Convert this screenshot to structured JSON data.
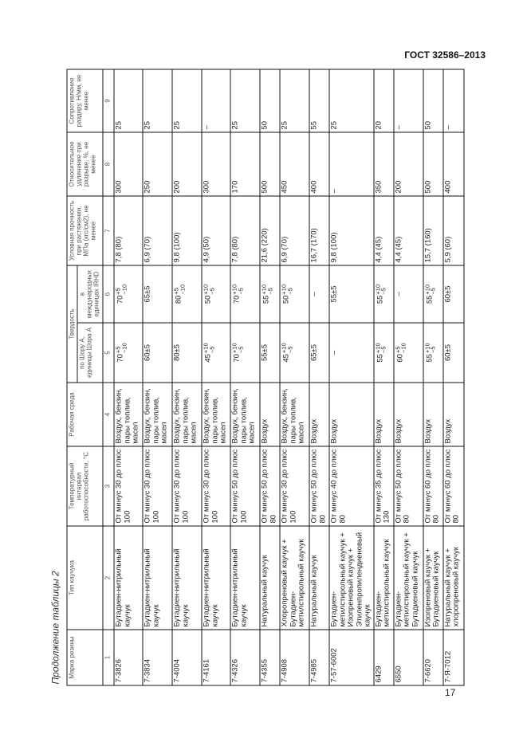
{
  "header": {
    "standard": "ГОСТ 32586–2013"
  },
  "page_number": "17",
  "caption": "Продолжение таблицы 2",
  "table": {
    "columns": {
      "mark": "Марка резины",
      "type": "Тип каучука",
      "temp": "Температурный интервал работоспособности, °С",
      "medium": "Рабочая среда",
      "hardness": "Твердость",
      "shore": "по Шору А, единицы Шора А",
      "irhd": "в международных единицах IRHD",
      "strength": "Условная прочность при растяжении, МПа (кгс/см2), не менее",
      "elong": "Относительное удлинение при разрыве, %, не менее",
      "tear": "Сопротивление раздиру, Н/мм, не менее"
    },
    "numbers": [
      "1",
      "2",
      "3",
      "4",
      "5",
      "6",
      "7",
      "8",
      "9"
    ],
    "rows": [
      {
        "mark": "7-3826",
        "type": "Бутадиен-нитрильный каучук",
        "temp": "От минус 30 до плюс 100",
        "medium": "Воздух, бензин, пары топлив, масел",
        "shore": {
          "v": "70",
          "up": "+5",
          "dn": "−10"
        },
        "irhd": {
          "v": "70",
          "up": "+5",
          "dn": "−10"
        },
        "strength": "7,8 (80)",
        "elong": "300",
        "tear": "25"
      },
      {
        "mark": "7-3834",
        "type": "Бутадиен-нитрильный каучук",
        "temp": "От минус 30 до плюс 100",
        "medium": "Воздух, бензин, пары топлив, масел",
        "shore": "60±5",
        "irhd": "65±5",
        "strength": "6,9 (70)",
        "elong": "250",
        "tear": "25"
      },
      {
        "mark": "7-4004",
        "type": "Бутадиен-нитрильный каучук",
        "temp": "От минус 30 до плюс 100",
        "medium": "Воздух, бензин, пары топлив, масел",
        "shore": "80±5",
        "irhd": {
          "v": "80",
          "up": "+5",
          "dn": "−10"
        },
        "strength": "9,8 (100)",
        "elong": "200",
        "tear": "25"
      },
      {
        "mark": "7-4161",
        "type": "Бутадиен-нитрильный каучук",
        "temp": "От минус 30 до плюс 100",
        "medium": "Воздух, бензин, пары топлив, масел",
        "shore": {
          "v": "45",
          "up": "+10",
          "dn": "−5"
        },
        "irhd": {
          "v": "50",
          "up": "+10",
          "dn": "−5"
        },
        "strength": "4,9 (50)",
        "elong": "300",
        "tear": "–"
      },
      {
        "mark": "7-4326",
        "type": "Бутадиен-нитрильный каучук",
        "temp": "От минус 50 до плюс 100",
        "medium": "Воздух, бензин, пары топлив, масел",
        "shore": {
          "v": "70",
          "up": "+10",
          "dn": "−5"
        },
        "irhd": {
          "v": "70",
          "up": "+10",
          "dn": "−5"
        },
        "strength": "7,8 (80)",
        "elong": "170",
        "tear": "25"
      },
      {
        "mark": "7-4355",
        "type": "Натуральный каучук",
        "temp": "От минус 50 до плюс 80",
        "medium": "Воздух",
        "shore": "55±5",
        "irhd": {
          "v": "55",
          "up": "+10",
          "dn": "−5"
        },
        "strength": "21,6 (220)",
        "elong": "500",
        "tear": "50"
      },
      {
        "mark": "7-4908",
        "type": "Хлоропреновый каучук + Бутадиен-метилстирольный каучук",
        "temp": "От минус 30 до плюс 100",
        "medium": "Воздух, бензин, пары топлив, масел",
        "shore": {
          "v": "45",
          "up": "+10",
          "dn": "−5"
        },
        "irhd": {
          "v": "50",
          "up": "+10",
          "dn": "−5"
        },
        "strength": "6,9 (70)",
        "elong": "450",
        "tear": "25"
      },
      {
        "mark": "7-4985",
        "type": "Натуральный каучук",
        "temp": "От минус 50 до плюс 80",
        "medium": "Воздух",
        "shore": "65±5",
        "irhd": "–",
        "strength": "16,7 (170)",
        "elong": "400",
        "tear": "55"
      },
      {
        "mark": "7-57-6002",
        "type": "Бутадиен-метилстирольный каучук + Изопреновый каучук + Этиленпропилендиеновый каучук",
        "temp": "От минус 40 до плюс 80",
        "medium": "Воздух",
        "shore": "–",
        "irhd": "55±5",
        "strength": "9,8 (100)",
        "elong": "–",
        "tear": "25"
      },
      {
        "mark": "6429",
        "type": "Бутадиен-метилстирольный каучук",
        "temp": "От минус 35 до плюс 130",
        "medium": "Воздух",
        "shore": {
          "v": "55",
          "up": "+10",
          "dn": "−5"
        },
        "irhd": {
          "v": "55",
          "up": "+10",
          "dn": "−5"
        },
        "strength": "4,4 (45)",
        "elong": "350",
        "tear": "20"
      },
      {
        "mark": "6550",
        "type": "Бутадиен-метилстирольный каучук + Бутадиеновый каучук",
        "temp": "От минус 50 до плюс 80",
        "medium": "Воздух",
        "shore": {
          "v": "60",
          "up": "+5",
          "dn": "−10"
        },
        "irhd": "–",
        "strength": "4,4 (45)",
        "elong": "200",
        "tear": "–"
      },
      {
        "mark": "7-6620",
        "type": "Изопреновый каучук + Бутадиеновый каучук",
        "temp": "От минус 60 до плюс 80",
        "medium": "Воздух",
        "shore": {
          "v": "55",
          "up": "+10",
          "dn": "−5"
        },
        "irhd": {
          "v": "55",
          "up": "+10",
          "dn": "−5"
        },
        "strength": "15,7 (160)",
        "elong": "500",
        "tear": "50"
      },
      {
        "mark": "7-Я-7012",
        "type": "Натуральный каучук + хлоропреновый каучук",
        "temp": "От минус 60 до плюс 80",
        "medium": "Воздух",
        "shore": "60±5",
        "irhd": "60±5",
        "strength": "5,9 (60)",
        "elong": "400",
        "tear": "–"
      }
    ]
  }
}
